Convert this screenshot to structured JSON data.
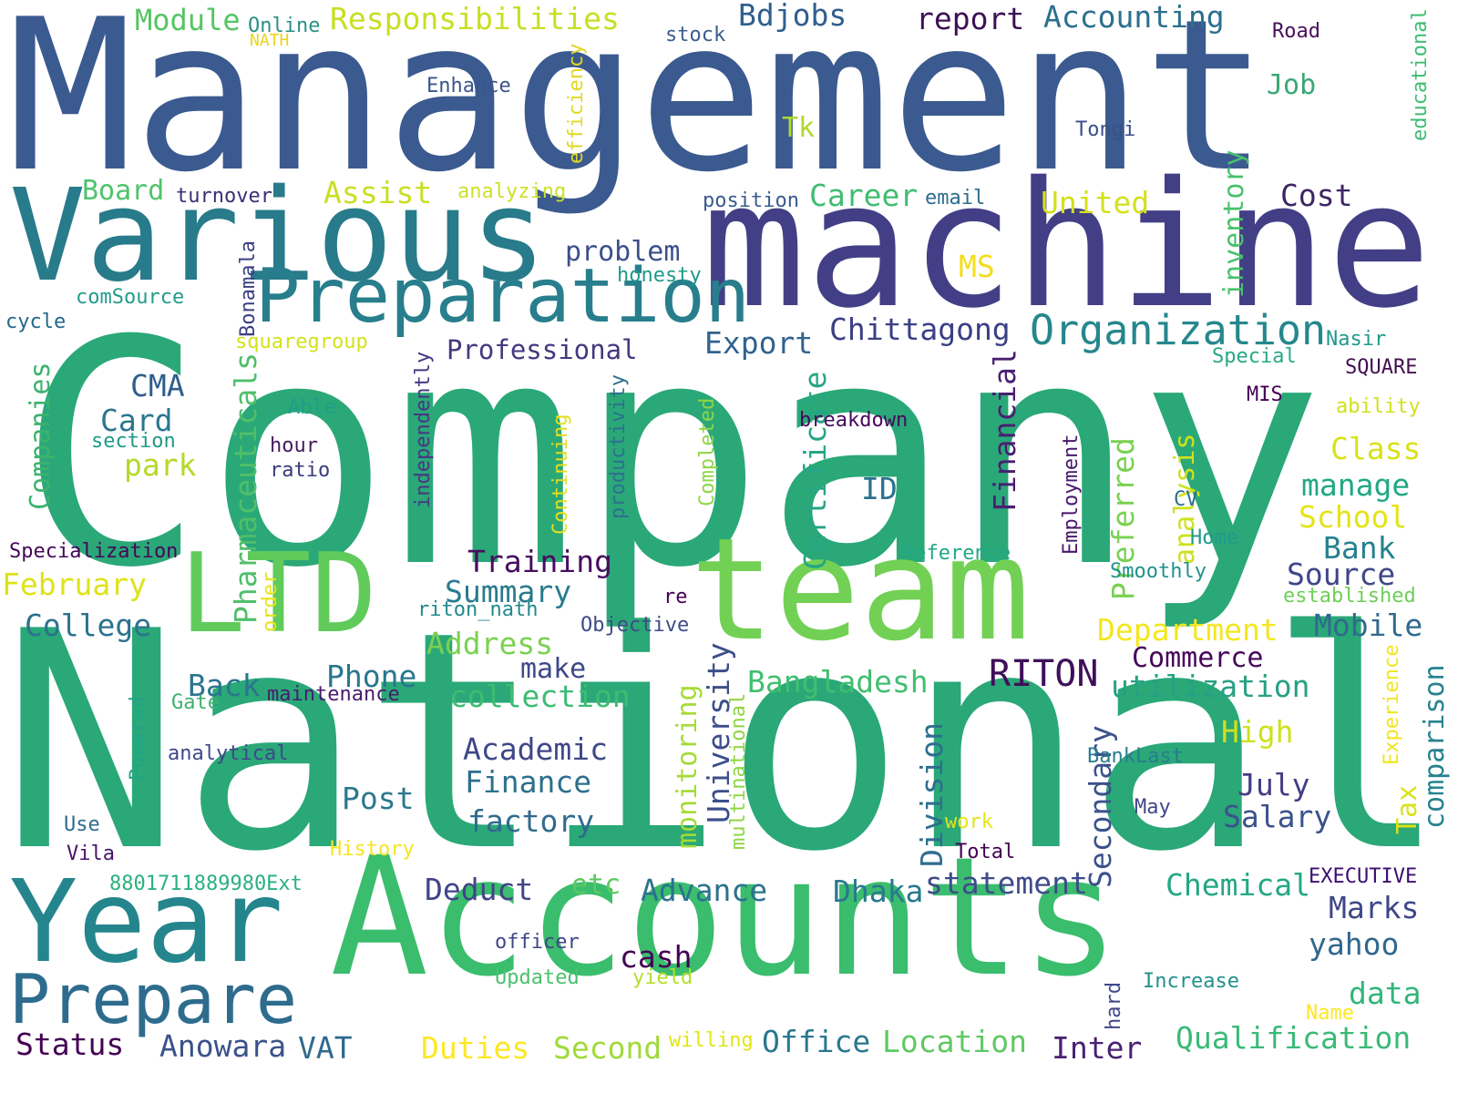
{
  "words": [
    {
      "text": "Management",
      "color": "#3b5a8f"
    },
    {
      "text": "Company",
      "color": "#2aa878"
    },
    {
      "text": "National",
      "color": "#2aa878"
    },
    {
      "text": "machine",
      "color": "#433f86"
    },
    {
      "text": "Various",
      "color": "#287b8a"
    },
    {
      "text": "Accounts",
      "color": "#3abd6d"
    },
    {
      "text": "team",
      "color": "#72d155"
    },
    {
      "text": "LTD",
      "color": "#60cb5a"
    },
    {
      "text": "Year",
      "color": "#24868c"
    },
    {
      "text": "Preparation",
      "color": "#287e8c"
    },
    {
      "text": "Prepare",
      "color": "#2e6c8e"
    },
    {
      "text": "Organization",
      "color": "#25878c"
    },
    {
      "text": "Module",
      "color": "#56c563"
    },
    {
      "text": "Online",
      "color": "#2b8f88"
    },
    {
      "text": "NATH",
      "color": "#ead31e"
    },
    {
      "text": "Responsibilities",
      "color": "#c7df22"
    },
    {
      "text": "stock",
      "color": "#3a5c8c"
    },
    {
      "text": "Bdjobs",
      "color": "#2f5e8e"
    },
    {
      "text": "report",
      "color": "#3d1055"
    },
    {
      "text": "Accounting",
      "color": "#2c6f8e"
    },
    {
      "text": "Road",
      "color": "#48115c"
    },
    {
      "text": "educational",
      "color": "#3fbc73"
    },
    {
      "text": "Enhance",
      "color": "#3a548c"
    },
    {
      "text": "efficiency",
      "color": "#e2d822"
    },
    {
      "text": "Job",
      "color": "#3ba775"
    },
    {
      "text": "Tk",
      "color": "#b2d82e"
    },
    {
      "text": "Tongi",
      "color": "#3a4f8a"
    },
    {
      "text": "Board",
      "color": "#4ec36b"
    },
    {
      "text": "turnover",
      "color": "#3b2f74"
    },
    {
      "text": "Assist",
      "color": "#c9df22"
    },
    {
      "text": "analyzing",
      "color": "#cbe12a"
    },
    {
      "text": "position",
      "color": "#3b5b8d"
    },
    {
      "text": "Career",
      "color": "#40bd72"
    },
    {
      "text": "email",
      "color": "#2e6c8e"
    },
    {
      "text": "United",
      "color": "#d3e01e"
    },
    {
      "text": "Cost",
      "color": "#3d2664"
    },
    {
      "text": "inventory",
      "color": "#48c16e"
    },
    {
      "text": "problem",
      "color": "#3b4f8a"
    },
    {
      "text": "MS",
      "color": "#f2de1c"
    },
    {
      "text": "honesty",
      "color": "#1f9a8a"
    },
    {
      "text": "comSource",
      "color": "#229c8b"
    },
    {
      "text": "Bonamala",
      "color": "#3a3f83"
    },
    {
      "text": "cycle",
      "color": "#23688e"
    },
    {
      "text": "squaregroup",
      "color": "#d3e21c"
    },
    {
      "text": "Export",
      "color": "#31638e"
    },
    {
      "text": "Chittagong",
      "color": "#3b3f85"
    },
    {
      "text": "Professional",
      "color": "#433a80"
    },
    {
      "text": "Nasir",
      "color": "#1f9a8a"
    },
    {
      "text": "Special",
      "color": "#29a884"
    },
    {
      "text": "SQUARE",
      "color": "#441050"
    },
    {
      "text": "Companies",
      "color": "#3db26f"
    },
    {
      "text": "Pharmaceuticals",
      "color": "#50bf6a"
    },
    {
      "text": "CMA",
      "color": "#2f5e8e"
    },
    {
      "text": "Card",
      "color": "#2a768e"
    },
    {
      "text": "section",
      "color": "#1f9a8a"
    },
    {
      "text": "park",
      "color": "#b6d82a"
    },
    {
      "text": "Able",
      "color": "#1f9e89"
    },
    {
      "text": "hour",
      "color": "#451a5d"
    },
    {
      "text": "ratio",
      "color": "#3a3a80"
    },
    {
      "text": "independently",
      "color": "#453781"
    },
    {
      "text": "productivity",
      "color": "#2c718e"
    },
    {
      "text": "Continuing",
      "color": "#e5df1f"
    },
    {
      "text": "Completed",
      "color": "#8ed645"
    },
    {
      "text": "Certificate",
      "color": "#26a685"
    },
    {
      "text": "breakdown",
      "color": "#46085c"
    },
    {
      "text": "Financial",
      "color": "#481f70"
    },
    {
      "text": "ID",
      "color": "#2c718e"
    },
    {
      "text": "Preferred",
      "color": "#79d151"
    },
    {
      "text": "analysis",
      "color": "#cde11d"
    },
    {
      "text": "Employment",
      "color": "#48186a"
    },
    {
      "text": "MIS",
      "color": "#440154"
    },
    {
      "text": "ability",
      "color": "#d0e11c"
    },
    {
      "text": "Class",
      "color": "#d8e219"
    },
    {
      "text": "manage",
      "color": "#22a884"
    },
    {
      "text": "CV",
      "color": "#2e6e8e"
    },
    {
      "text": "School",
      "color": "#e3e418"
    },
    {
      "text": "Home",
      "color": "#1f9a8a"
    },
    {
      "text": "Bank",
      "color": "#26818e"
    },
    {
      "text": "Smoothly",
      "color": "#21918c"
    },
    {
      "text": "Source",
      "color": "#404688"
    },
    {
      "text": "established",
      "color": "#6ece58"
    },
    {
      "text": "Reference",
      "color": "#22a884"
    },
    {
      "text": "Specialization",
      "color": "#46075a"
    },
    {
      "text": "February",
      "color": "#dde318"
    },
    {
      "text": "order",
      "color": "#e7e419"
    },
    {
      "text": "Training",
      "color": "#470d60"
    },
    {
      "text": "Summary",
      "color": "#297b8e"
    },
    {
      "text": "riton_nath",
      "color": "#23898e"
    },
    {
      "text": "College",
      "color": "#2c718e"
    },
    {
      "text": "Objective",
      "color": "#3e4a89"
    },
    {
      "text": "re",
      "color": "#440154"
    },
    {
      "text": "Department",
      "color": "#f4e61e"
    },
    {
      "text": "Mobile",
      "color": "#306a8e"
    },
    {
      "text": "Address",
      "color": "#7ad151"
    },
    {
      "text": "make",
      "color": "#3f4889"
    },
    {
      "text": "RITON",
      "color": "#3f0f5a"
    },
    {
      "text": "Commerce",
      "color": "#46075a"
    },
    {
      "text": "monitoring",
      "color": "#a5db36"
    },
    {
      "text": "utilization",
      "color": "#25a183"
    },
    {
      "text": "Experience",
      "color": "#f1e51d"
    },
    {
      "text": "comparison",
      "color": "#26828e"
    },
    {
      "text": "Back",
      "color": "#2b758e"
    },
    {
      "text": "Phone",
      "color": "#2a768e"
    },
    {
      "text": "collection",
      "color": "#3dbc74"
    },
    {
      "text": "Bangladesh",
      "color": "#42be71"
    },
    {
      "text": "Powered",
      "color": "#20a486"
    },
    {
      "text": "Gate",
      "color": "#3db26f"
    },
    {
      "text": "maintenance",
      "color": "#481c6e"
    },
    {
      "text": "multinational",
      "color": "#8ed645"
    },
    {
      "text": "University",
      "color": "#3d4e8a"
    },
    {
      "text": "Academic",
      "color": "#3f4788"
    },
    {
      "text": "Division",
      "color": "#2e6e8e"
    },
    {
      "text": "Secondary",
      "color": "#3b528b"
    },
    {
      "text": "High",
      "color": "#cde11d"
    },
    {
      "text": "analytical",
      "color": "#3f4889"
    },
    {
      "text": "Finance",
      "color": "#2d708e"
    },
    {
      "text": "BankLast",
      "color": "#287d8e"
    },
    {
      "text": "Tax",
      "color": "#dae319"
    },
    {
      "text": "Post",
      "color": "#2a788e"
    },
    {
      "text": "July",
      "color": "#433e85"
    },
    {
      "text": "factory",
      "color": "#306a8e"
    },
    {
      "text": "May",
      "color": "#404688"
    },
    {
      "text": "Salary",
      "color": "#3b528b"
    },
    {
      "text": "Use",
      "color": "#2f6b8e"
    },
    {
      "text": "work",
      "color": "#e5e419"
    },
    {
      "text": "Vila",
      "color": "#481467"
    },
    {
      "text": "History",
      "color": "#f6e620"
    },
    {
      "text": "Total",
      "color": "#440154"
    },
    {
      "text": "8801711889980Ext",
      "color": "#2ab07f"
    },
    {
      "text": "Deduct",
      "color": "#414487"
    },
    {
      "text": "etc",
      "color": "#5ec962"
    },
    {
      "text": "Advance",
      "color": "#2c728e"
    },
    {
      "text": "Dhaka",
      "color": "#2a788e"
    },
    {
      "text": "statement",
      "color": "#3e4c8a"
    },
    {
      "text": "Chemical",
      "color": "#22a884"
    },
    {
      "text": "EXECUTIVE",
      "color": "#3b0f70"
    },
    {
      "text": "Marks",
      "color": "#3f4788"
    },
    {
      "text": "officer",
      "color": "#404688"
    },
    {
      "text": "cash",
      "color": "#440154"
    },
    {
      "text": "yahoo",
      "color": "#31688e"
    },
    {
      "text": "data",
      "color": "#32b67a"
    },
    {
      "text": "Updated",
      "color": "#4ac16d"
    },
    {
      "text": "yield",
      "color": "#b5de2b"
    },
    {
      "text": "Increase",
      "color": "#21918c"
    },
    {
      "text": "hard",
      "color": "#3f4889"
    },
    {
      "text": "Name",
      "color": "#fde725"
    },
    {
      "text": "Status",
      "color": "#440154"
    },
    {
      "text": "Anowara",
      "color": "#3b528b"
    },
    {
      "text": "VAT",
      "color": "#31688e"
    },
    {
      "text": "Duties",
      "color": "#fde725"
    },
    {
      "text": "Second",
      "color": "#a0da39"
    },
    {
      "text": "willing",
      "color": "#e2e418"
    },
    {
      "text": "Office",
      "color": "#2a788e"
    },
    {
      "text": "Location",
      "color": "#5ec962"
    },
    {
      "text": "Inter",
      "color": "#482173"
    },
    {
      "text": "Qualification",
      "color": "#3aba76"
    }
  ]
}
